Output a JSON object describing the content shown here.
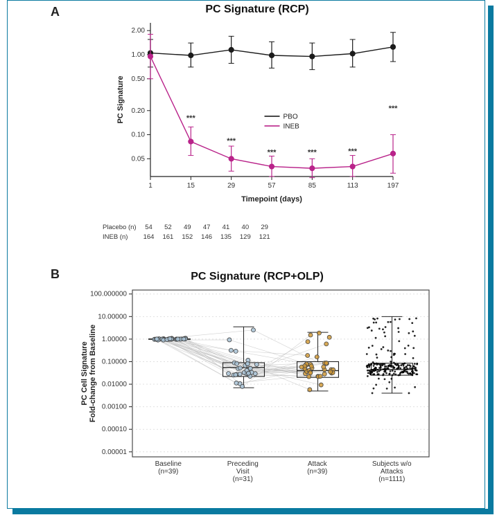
{
  "figure": {
    "panelA_label": "A",
    "panelB_label": "B",
    "frame_border_color": "#0a7aa0",
    "shadow_color": "#0a7aa0"
  },
  "chartA": {
    "type": "line-errorbar-logY",
    "title": "PC Signature (RCP)",
    "xlabel": "Timepoint (days)",
    "ylabel": "PC Signature",
    "x_ticks": [
      1,
      15,
      29,
      57,
      85,
      113,
      197
    ],
    "y_ticks": [
      0.05,
      0.1,
      0.2,
      0.5,
      1.0,
      2.0
    ],
    "ylim_log": [
      0.03,
      2.5
    ],
    "legend": [
      {
        "label": "PBO",
        "color": "#1b1b1b"
      },
      {
        "label": "INEB",
        "color": "#b9238a"
      }
    ],
    "series": {
      "PBO": {
        "color": "#1b1b1b",
        "marker": "circle",
        "y": [
          1.05,
          0.98,
          1.15,
          0.98,
          0.95,
          1.03,
          1.25
        ],
        "ylo": [
          0.7,
          0.7,
          0.78,
          0.68,
          0.65,
          0.7,
          0.82
        ],
        "yhi": [
          1.55,
          1.4,
          1.7,
          1.45,
          1.4,
          1.55,
          1.9
        ],
        "sig": [
          "",
          "",
          "",
          "",
          "",
          "",
          ""
        ]
      },
      "INEB": {
        "color": "#b9238a",
        "marker": "circle",
        "y": [
          0.95,
          0.082,
          0.05,
          0.04,
          0.038,
          0.04,
          0.058
        ],
        "ylo": [
          0.5,
          0.055,
          0.035,
          0.03,
          0.029,
          0.03,
          0.033
        ],
        "yhi": [
          1.8,
          0.125,
          0.072,
          0.054,
          0.05,
          0.055,
          0.1
        ],
        "sig": [
          "",
          "***",
          "***",
          "***",
          "***",
          "***",
          "***"
        ]
      }
    },
    "sig_y_pos": [
      0,
      0.15,
      0.078,
      0.056,
      0.056,
      0.058,
      0.2
    ],
    "n_table": {
      "rows": [
        {
          "label": "Placebo (n)",
          "vals": [
            54,
            52,
            49,
            47,
            41,
            40,
            29
          ]
        },
        {
          "label": "INEB (n)",
          "vals": [
            164,
            161,
            152,
            146,
            135,
            129,
            121
          ]
        }
      ]
    },
    "line_width": 1.4,
    "marker_r": 3.6,
    "errwhisker": 4
  },
  "chartB": {
    "type": "box-strip-logY",
    "title": "PC Signature (RCP+OLP)",
    "ylabel_line1": "PC Cell Signature",
    "ylabel_line2": "Fold-change from Baseline",
    "y_ticks": [
      1e-05,
      0.0001,
      0.001,
      0.01,
      0.1,
      1.0,
      10.0,
      100.0
    ],
    "y_tick_labels": [
      "0.00001",
      "0.00010",
      "0.00100",
      "0.01000",
      "0.10000",
      "1.00000",
      "10.00000",
      "100.000000"
    ],
    "ylim_log": [
      6e-06,
      150
    ],
    "categories": [
      {
        "label_line1": "Baseline",
        "label_line2": "(n=39)",
        "color": "#a9c3d6"
      },
      {
        "label_line1": "Preceding",
        "label_line2": "Visit",
        "label_line3": "(n=31)",
        "color": "#a9c3d6"
      },
      {
        "label_line1": "Attack",
        "label_line2": "(n=39)",
        "color": "#d09a3a"
      },
      {
        "label_line1": "Subjects w/o",
        "label_line2": "Attacks",
        "label_line3": "(n=1111)",
        "color": "#000000"
      }
    ],
    "boxes": [
      {
        "min": 0.9,
        "q1": 0.98,
        "med": 1.0,
        "q3": 1.02,
        "max": 1.1
      },
      {
        "min": 0.007,
        "q1": 0.022,
        "med": 0.055,
        "q3": 0.09,
        "max": 3.5
      },
      {
        "min": 0.005,
        "q1": 0.02,
        "med": 0.04,
        "q3": 0.1,
        "max": 2.0
      },
      {
        "min": 0.004,
        "q1": 0.025,
        "med": 0.045,
        "q3": 0.085,
        "max": 10.0
      }
    ],
    "point_counts": [
      39,
      31,
      39,
      220
    ],
    "connect_groups_0_1_2": true,
    "box_border_color": "#222222",
    "grid_color": "#e0e0e0",
    "panel_border": "#4a4a4a",
    "marker_r": 3.0,
    "dense_marker_r": 1.4
  }
}
